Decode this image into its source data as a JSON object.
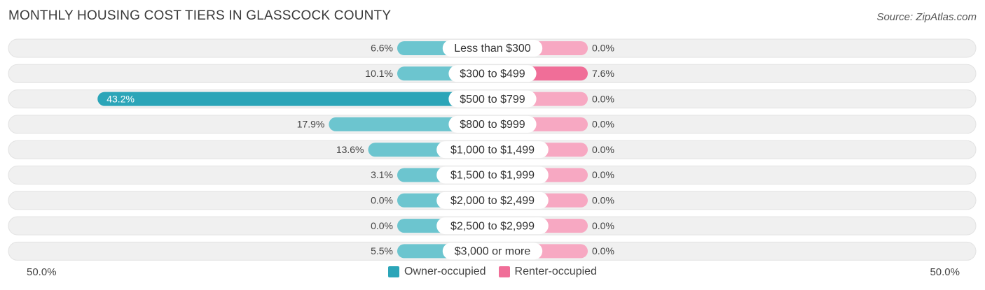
{
  "title": "MONTHLY HOUSING COST TIERS IN GLASSCOCK COUNTY",
  "source": "Source: ZipAtlas.com",
  "colors": {
    "owner": "#6cc5cf",
    "owner_highlight": "#2ba5b8",
    "renter": "#f7a8c2",
    "renter_highlight": "#f06e98",
    "row_background": "#f0f0f0"
  },
  "chart_data": {
    "type": "bar",
    "orientation": "horizontal-diverging",
    "categories": [
      "Less than $300",
      "$300 to $499",
      "$500 to $799",
      "$800 to $999",
      "$1,000 to $1,499",
      "$1,500 to $1,999",
      "$2,000 to $2,499",
      "$2,500 to $2,999",
      "$3,000 or more"
    ],
    "series": [
      {
        "name": "Owner-occupied",
        "values": [
          6.6,
          10.1,
          43.2,
          17.9,
          13.6,
          3.1,
          0.0,
          0.0,
          5.5
        ],
        "labels": [
          "6.6%",
          "10.1%",
          "43.2%",
          "17.9%",
          "13.6%",
          "3.1%",
          "0.0%",
          "0.0%",
          "5.5%"
        ]
      },
      {
        "name": "Renter-occupied",
        "values": [
          0.0,
          7.6,
          0.0,
          0.0,
          0.0,
          0.0,
          0.0,
          0.0,
          0.0
        ],
        "labels": [
          "0.0%",
          "7.6%",
          "0.0%",
          "0.0%",
          "0.0%",
          "0.0%",
          "0.0%",
          "0.0%",
          "0.0%"
        ]
      }
    ],
    "xlim": [
      -50,
      50
    ],
    "axis_left_label": "50.0%",
    "axis_right_label": "50.0%",
    "legend_position": "bottom-center"
  }
}
